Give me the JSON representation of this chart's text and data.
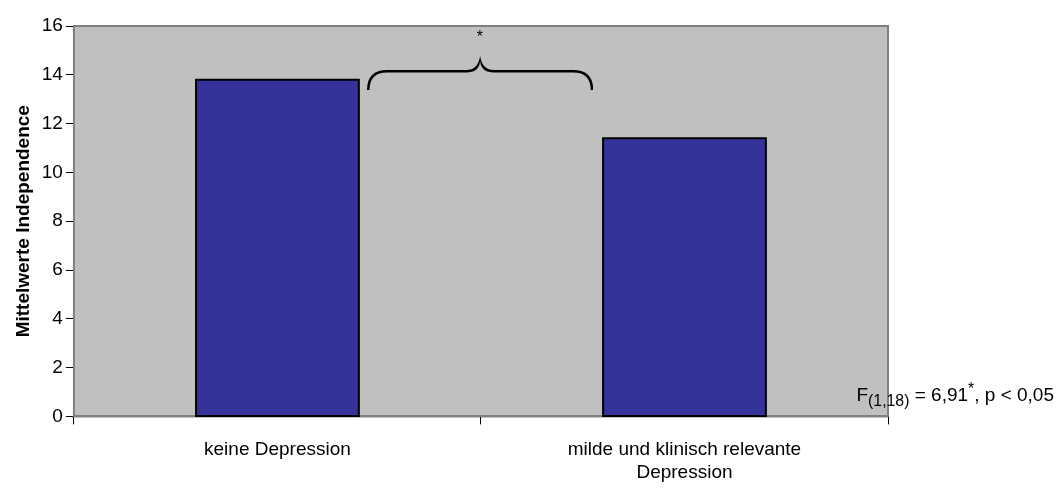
{
  "chart_data": {
    "type": "bar",
    "ylabel": "Mittelwerte Independence",
    "categories": [
      "keine Depression",
      "milde und klinisch relevante Depression"
    ],
    "values": [
      13.8,
      11.4
    ],
    "color": "#333399",
    "ylim": [
      0,
      16
    ],
    "yticks": [
      0,
      2,
      4,
      6,
      8,
      10,
      12,
      14,
      16
    ],
    "grid": false,
    "legend": false,
    "annotations": [
      "*",
      "F$_{(1,18)}$ = 6,91$^{*}$, p < 0,05"
    ]
  }
}
